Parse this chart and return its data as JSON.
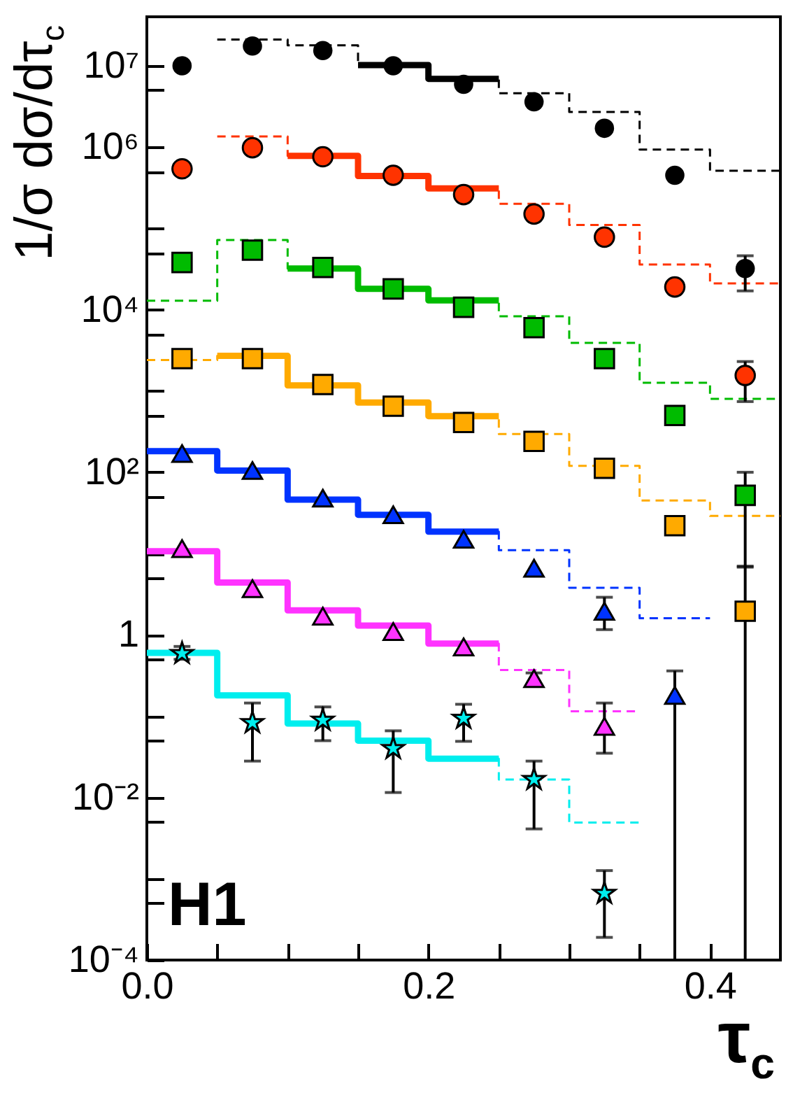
{
  "chart_data": {
    "type": "scatter",
    "ylabel": "1/σ dσ/dτ$_{c}$",
    "xlabel": "τ$_{c}$",
    "annotations": [
      "H1"
    ],
    "log": true,
    "grid": false,
    "xlim": [
      0,
      0.45
    ],
    "ylim": [
      0.0001,
      40000000
    ],
    "xticks": [
      {
        "value": 0,
        "label": "0.0"
      },
      {
        "value": 0.05,
        "label": null
      },
      {
        "value": 0.1,
        "label": null
      },
      {
        "value": 0.15,
        "label": null
      },
      0.2,
      {
        "value": 0.25,
        "label": null
      },
      {
        "value": 0.3,
        "label": null
      },
      {
        "value": 0.35,
        "label": null
      },
      0.4
    ],
    "yticks": [
      {
        "value": 0.0001,
        "label": "10⁻⁴"
      },
      {
        "value": 0.0005,
        "label": null
      },
      {
        "value": 0.001,
        "label": null
      },
      {
        "value": 0.005,
        "label": null
      },
      {
        "value": 0.01,
        "label": "10⁻²"
      },
      {
        "value": 0.05,
        "label": null
      },
      {
        "value": 0.1,
        "label": null
      },
      {
        "value": 0.5,
        "label": null
      },
      1,
      {
        "value": 5,
        "label": null
      },
      {
        "value": 10,
        "label": null
      },
      {
        "value": 50,
        "label": null
      },
      {
        "value": 100,
        "label": "10²"
      },
      {
        "value": 500,
        "label": null
      },
      {
        "value": 1000,
        "label": null
      },
      {
        "value": 5000,
        "label": null
      },
      {
        "value": 10000,
        "label": "10⁴"
      },
      {
        "value": 50000,
        "label": null
      },
      {
        "value": 100000,
        "label": null
      },
      {
        "value": 500000,
        "label": null
      },
      {
        "value": 1000000,
        "label": "10⁶"
      },
      {
        "value": 5000000,
        "label": null
      },
      {
        "value": 10000000,
        "label": "10⁷"
      }
    ],
    "series": [
      {
        "type": "step",
        "line_style": "dashed",
        "color": "#000000",
        "x": [
          0.05,
          0.1,
          0.15,
          0.2,
          0.25,
          0.3,
          0.35,
          0.4,
          0.45
        ],
        "values": [
          21000000,
          17800000,
          10200000,
          6900000,
          4600000,
          2700000,
          930000,
          510000,
          510000
        ]
      },
      {
        "type": "step",
        "line_style": "solid",
        "color": "#000000",
        "x": [
          0.15,
          0.2,
          0.25
        ],
        "values": [
          10200000,
          6900000,
          6900000
        ]
      },
      {
        "type": "step",
        "line_style": "dashed",
        "color": "#ff3300",
        "x": [
          0.05,
          0.1,
          0.15,
          0.2,
          0.25,
          0.3,
          0.35,
          0.4,
          0.45
        ],
        "values": [
          1350000,
          780000,
          440000,
          310000,
          200000,
          110000,
          36000,
          21000,
          21000
        ]
      },
      {
        "type": "step",
        "line_style": "solid",
        "color": "#ff3300",
        "x": [
          0.1,
          0.15,
          0.2,
          0.25
        ],
        "values": [
          780000,
          440000,
          310000,
          310000
        ]
      },
      {
        "type": "step",
        "line_style": "dashed",
        "color": "#00bb00",
        "x": [
          0,
          0.05,
          0.1,
          0.15,
          0.2,
          0.25,
          0.3,
          0.35,
          0.4,
          0.45
        ],
        "values": [
          12900,
          72000,
          32000,
          18000,
          13000,
          8300,
          3900,
          1260,
          800,
          800
        ]
      },
      {
        "type": "step",
        "line_style": "solid",
        "color": "#00bb00",
        "x": [
          0.1,
          0.15,
          0.2,
          0.25
        ],
        "values": [
          32000,
          18000,
          13000,
          13000
        ]
      },
      {
        "type": "step",
        "line_style": "dashed",
        "color": "#ffaa00",
        "x": [
          0,
          0.05,
          0.1,
          0.15,
          0.2,
          0.25,
          0.3,
          0.35,
          0.4,
          0.45
        ],
        "values": [
          2400,
          2700,
          1170,
          720,
          490,
          295,
          120,
          45,
          29,
          29
        ]
      },
      {
        "type": "step",
        "line_style": "solid",
        "color": "#ffaa00",
        "x": [
          0.05,
          0.1,
          0.15,
          0.2,
          0.25
        ],
        "values": [
          2700,
          1170,
          720,
          490,
          490
        ]
      },
      {
        "type": "step",
        "line_style": "dashed",
        "color": "#0033ff",
        "x": [
          0.2,
          0.25,
          0.3,
          0.35,
          0.4
        ],
        "values": [
          18.6,
          11,
          3.8,
          1.6,
          1.6
        ]
      },
      {
        "type": "step",
        "line_style": "solid",
        "color": "#0033ff",
        "x": [
          0,
          0.05,
          0.1,
          0.15,
          0.2,
          0.25
        ],
        "values": [
          182,
          105,
          46,
          30,
          18.6,
          18.6
        ]
      },
      {
        "type": "step",
        "line_style": "dashed",
        "color": "#ff33ff",
        "x": [
          0.2,
          0.25,
          0.3,
          0.35
        ],
        "values": [
          0.78,
          0.37,
          0.115,
          0.115
        ]
      },
      {
        "type": "step",
        "line_style": "solid",
        "color": "#ff33ff",
        "x": [
          0,
          0.05,
          0.1,
          0.15,
          0.2,
          0.25
        ],
        "values": [
          10.7,
          4.4,
          2.0,
          1.3,
          0.78,
          0.78
        ]
      },
      {
        "type": "step",
        "line_style": "dashed",
        "color": "#00eeee",
        "x": [
          0.2,
          0.25,
          0.3,
          0.35
        ],
        "values": [
          0.03,
          0.0166,
          0.0049,
          0.0049
        ]
      },
      {
        "type": "step",
        "line_style": "solid",
        "color": "#00eeee",
        "x": [
          0,
          0.05,
          0.1,
          0.15,
          0.2,
          0.25
        ],
        "values": [
          0.6,
          0.18,
          0.081,
          0.05,
          0.03,
          0.03
        ]
      },
      {
        "marker": "circle",
        "color": "#000000",
        "x": [
          0.025,
          0.075,
          0.125,
          0.175,
          0.225,
          0.275,
          0.325,
          0.375,
          0.425
        ],
        "values": [
          10000000,
          17500000,
          15400000,
          10000000,
          5900000,
          3600000,
          1700000,
          450000,
          32000
        ],
        "errors": [
          null,
          null,
          null,
          null,
          null,
          null,
          null,
          null,
          [
            17000,
            46000
          ]
        ]
      },
      {
        "marker": "circle",
        "color": "#ff3300",
        "x": [
          0.025,
          0.075,
          0.125,
          0.175,
          0.225,
          0.275,
          0.325,
          0.375,
          0.425
        ],
        "values": [
          540000,
          980000,
          760000,
          450000,
          260000,
          150000,
          78000,
          19000,
          1550
        ],
        "errors": [
          null,
          null,
          null,
          null,
          null,
          null,
          null,
          null,
          [
            740,
            2300
          ]
        ]
      },
      {
        "marker": "square",
        "color": "#00bb00",
        "x": [
          0.025,
          0.075,
          0.125,
          0.175,
          0.225,
          0.275,
          0.325,
          0.375,
          0.425
        ],
        "values": [
          38000,
          54000,
          33000,
          18000,
          10700,
          6000,
          2500,
          500,
          52
        ],
        "errors": [
          null,
          null,
          null,
          null,
          null,
          null,
          null,
          null,
          [
            6.8,
            100
          ]
        ]
      },
      {
        "marker": "square",
        "color": "#ffaa00",
        "x": [
          0.025,
          0.075,
          0.125,
          0.175,
          0.225,
          0.275,
          0.325,
          0.375,
          0.425
        ],
        "values": [
          2500,
          2500,
          1200,
          650,
          410,
          240,
          112,
          22,
          1.95
        ],
        "errors": [
          null,
          null,
          null,
          null,
          null,
          null,
          null,
          [
            19,
            26
          ],
          [
            0.0001,
            7
          ]
        ]
      },
      {
        "marker": "triangle",
        "color": "#0033ff",
        "x": [
          0.025,
          0.075,
          0.125,
          0.175,
          0.225,
          0.275,
          0.325,
          0.375
        ],
        "values": [
          170,
          105,
          48,
          30,
          15,
          6.6,
          1.95,
          0.18
        ],
        "errors": [
          null,
          null,
          null,
          null,
          null,
          null,
          [
            1.16,
            2.9
          ],
          [
            0.0001,
            0.36
          ]
        ]
      },
      {
        "marker": "triangle",
        "color": "#ff33ff",
        "x": [
          0.025,
          0.075,
          0.125,
          0.175,
          0.225,
          0.275,
          0.325
        ],
        "values": [
          11.5,
          3.7,
          1.7,
          1.1,
          0.71,
          0.29,
          0.075
        ],
        "errors": [
          null,
          null,
          null,
          null,
          null,
          [
            0.24,
            0.34
          ],
          [
            0.035,
            0.145
          ]
        ]
      },
      {
        "marker": "star",
        "color": "#00eeee",
        "x": [
          0.025,
          0.075,
          0.125,
          0.175,
          0.225,
          0.275,
          0.325
        ],
        "values": [
          0.59,
          0.083,
          0.089,
          0.04,
          0.094,
          0.0166,
          0.00066
        ],
        "errors": [
          [
            0.5,
            0.72
          ],
          [
            0.028,
            0.145
          ],
          [
            0.05,
            0.13
          ],
          [
            0.0115,
            0.066
          ],
          [
            0.049,
            0.14
          ],
          [
            0.0041,
            0.028
          ],
          [
            0.00019,
            0.00126
          ]
        ]
      }
    ]
  }
}
